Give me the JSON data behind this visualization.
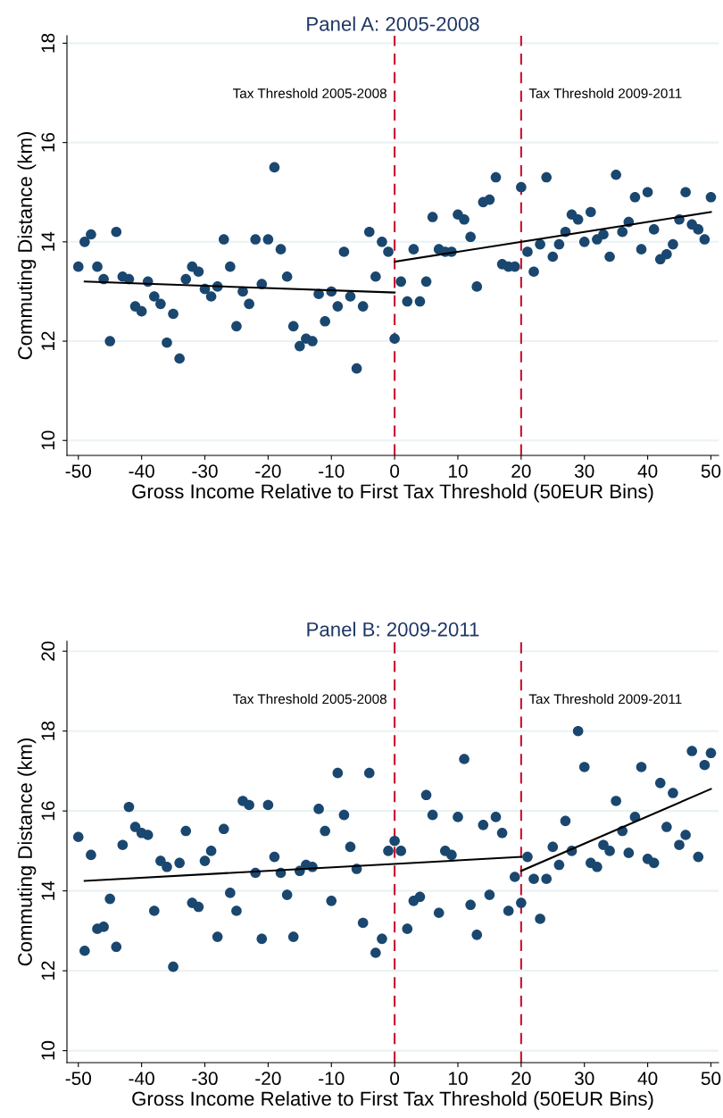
{
  "chart_data": [
    {
      "type": "scatter",
      "title": "Panel A: 2005-2008",
      "xlabel": "Gross Income Relative to First Tax Threshold (50EUR Bins)",
      "ylabel": "Commuting Distance (km)",
      "xlim": [
        -51.8,
        51.2
      ],
      "xticks": [
        -50,
        -40,
        -30,
        -20,
        -10,
        0,
        10,
        20,
        30,
        40,
        50
      ],
      "ylim": [
        9.7,
        18.15
      ],
      "yticks": [
        10,
        12,
        14,
        16,
        18
      ],
      "grid": "y",
      "legend": false,
      "series": [
        {
          "type": "scatter",
          "marker": "circle",
          "color": "#1a476f",
          "x": [
            -50,
            -49,
            -48,
            -47,
            -46,
            -45,
            -44,
            -43,
            -42,
            -41,
            -40,
            -39,
            -38,
            -37,
            -36,
            -35,
            -34,
            -33,
            -32,
            -31,
            -30,
            -29,
            -28,
            -27,
            -26,
            -25,
            -24,
            -23,
            -22,
            -21,
            -20,
            -19,
            -18,
            -17,
            -16,
            -15,
            -14,
            -13,
            -12,
            -11,
            -10,
            -9,
            -8,
            -7,
            -6,
            -5,
            -4,
            -3,
            -2,
            -1,
            0,
            1,
            2,
            3,
            4,
            5,
            6,
            7,
            8,
            9,
            10,
            11,
            12,
            13,
            14,
            15,
            16,
            17,
            18,
            19,
            20,
            21,
            22,
            23,
            24,
            25,
            26,
            27,
            28,
            29,
            30,
            31,
            32,
            33,
            34,
            35,
            36,
            37,
            38,
            39,
            40,
            41,
            42,
            43,
            44,
            45,
            46,
            47,
            48,
            49,
            50
          ],
          "values": [
            13.5,
            14.0,
            14.15,
            13.5,
            13.25,
            12.0,
            14.2,
            13.3,
            13.25,
            12.7,
            12.6,
            13.2,
            12.9,
            12.75,
            11.97,
            12.55,
            11.65,
            13.25,
            13.5,
            13.4,
            13.05,
            12.9,
            13.1,
            14.05,
            13.5,
            12.3,
            13.0,
            12.75,
            14.05,
            13.15,
            14.05,
            15.5,
            13.85,
            13.3,
            12.3,
            11.9,
            12.05,
            12.0,
            12.95,
            12.4,
            13.0,
            12.7,
            13.8,
            12.9,
            11.45,
            12.7,
            14.2,
            13.3,
            14.0,
            13.8,
            12.05,
            13.2,
            12.8,
            13.85,
            12.8,
            13.2,
            14.5,
            13.85,
            13.8,
            13.8,
            14.55,
            14.45,
            14.1,
            13.1,
            14.8,
            14.85,
            15.3,
            13.55,
            13.5,
            13.5,
            15.1,
            13.8,
            13.4,
            13.95,
            15.3,
            13.7,
            13.95,
            14.2,
            14.55,
            14.45,
            14.0,
            14.6,
            14.05,
            14.15,
            13.7,
            15.35,
            14.2,
            14.4,
            14.9,
            13.85,
            15.0,
            14.25,
            13.65,
            13.75,
            13.95,
            14.45,
            15.0,
            14.35,
            14.25,
            14.05,
            14.9
          ]
        },
        {
          "type": "line",
          "color": "#000000",
          "x": [
            -49,
            0
          ],
          "values": [
            13.2,
            12.98
          ]
        },
        {
          "type": "line",
          "color": "#000000",
          "x": [
            0,
            50
          ],
          "values": [
            13.6,
            14.6
          ]
        }
      ],
      "ref_lines": [
        {
          "axis": "x",
          "value": 0,
          "label": "Tax Threshold 2005-2008",
          "color": "#c8102e",
          "line_style": "dashed"
        },
        {
          "axis": "x",
          "value": 20,
          "label": "Tax Threshold 2009-2011",
          "color": "#c8102e",
          "line_style": "dashed"
        }
      ]
    },
    {
      "type": "scatter",
      "title": "Panel B: 2009-2011",
      "xlabel": "Gross Income Relative to First Tax Threshold (50EUR Bins)",
      "ylabel": "Commuting Distance (km)",
      "xlim": [
        -51.8,
        51.2
      ],
      "xticks": [
        -50,
        -40,
        -30,
        -20,
        -10,
        0,
        10,
        20,
        30,
        40,
        50
      ],
      "ylim": [
        9.7,
        20.25
      ],
      "yticks": [
        10,
        12,
        14,
        16,
        18,
        20
      ],
      "grid": "y",
      "legend": false,
      "series": [
        {
          "type": "scatter",
          "marker": "circle",
          "color": "#1a476f",
          "x": [
            -50,
            -49,
            -48,
            -47,
            -46,
            -45,
            -44,
            -43,
            -42,
            -41,
            -40,
            -39,
            -38,
            -37,
            -36,
            -35,
            -34,
            -33,
            -32,
            -31,
            -30,
            -29,
            -28,
            -27,
            -26,
            -25,
            -24,
            -23,
            -22,
            -21,
            -20,
            -19,
            -18,
            -17,
            -16,
            -15,
            -14,
            -13,
            -12,
            -11,
            -10,
            -9,
            -8,
            -7,
            -6,
            -5,
            -4,
            -3,
            -2,
            -1,
            0,
            1,
            2,
            3,
            4,
            5,
            6,
            7,
            8,
            9,
            10,
            11,
            12,
            13,
            14,
            15,
            16,
            17,
            18,
            19,
            20,
            21,
            22,
            23,
            24,
            25,
            26,
            27,
            28,
            29,
            30,
            31,
            32,
            33,
            34,
            35,
            36,
            37,
            38,
            39,
            40,
            41,
            42,
            43,
            44,
            45,
            46,
            47,
            48,
            49,
            50
          ],
          "values": [
            15.35,
            12.5,
            14.9,
            13.05,
            13.1,
            13.8,
            12.6,
            15.15,
            16.1,
            15.6,
            15.45,
            15.4,
            13.5,
            14.75,
            14.6,
            12.1,
            14.7,
            15.5,
            13.7,
            13.6,
            14.75,
            15.0,
            12.85,
            15.55,
            13.95,
            13.5,
            16.25,
            16.15,
            14.45,
            12.8,
            16.15,
            14.85,
            14.45,
            13.9,
            12.85,
            14.5,
            14.65,
            14.6,
            16.05,
            15.5,
            13.75,
            16.95,
            15.9,
            15.1,
            14.55,
            13.2,
            16.95,
            12.45,
            12.8,
            15.0,
            15.25,
            15.0,
            13.05,
            13.75,
            13.85,
            16.4,
            15.9,
            13.45,
            15.0,
            14.9,
            15.85,
            17.3,
            13.65,
            12.9,
            15.65,
            13.9,
            15.85,
            15.45,
            13.5,
            14.35,
            13.7,
            14.85,
            14.3,
            13.3,
            14.3,
            15.1,
            14.65,
            15.75,
            15.0,
            18.0,
            17.1,
            14.7,
            14.6,
            15.15,
            15.0,
            16.25,
            15.5,
            14.95,
            15.85,
            17.1,
            14.8,
            14.7,
            16.7,
            15.6,
            16.45,
            15.15,
            15.4,
            17.5,
            14.85,
            17.15,
            17.45
          ]
        },
        {
          "type": "line",
          "color": "#000000",
          "x": [
            -49,
            20
          ],
          "values": [
            14.25,
            14.85
          ]
        },
        {
          "type": "line",
          "color": "#000000",
          "x": [
            20,
            50
          ],
          "values": [
            14.5,
            16.55
          ]
        }
      ],
      "ref_lines": [
        {
          "axis": "x",
          "value": 0,
          "label": "Tax Threshold 2005-2008",
          "color": "#c8102e",
          "line_style": "dashed"
        },
        {
          "axis": "x",
          "value": 20,
          "label": "Tax Threshold 2009-2011",
          "color": "#c8102e",
          "line_style": "dashed"
        }
      ]
    }
  ]
}
